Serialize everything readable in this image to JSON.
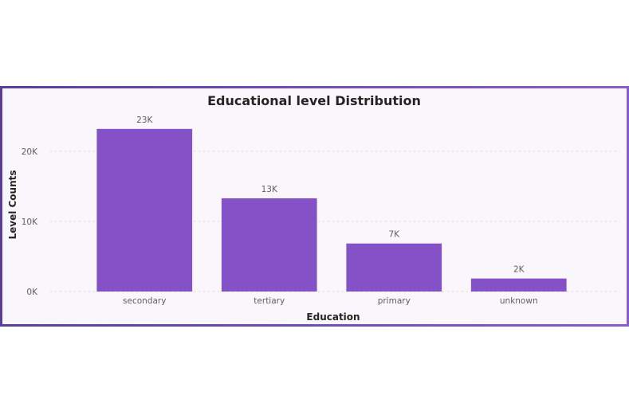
{
  "chart_data": {
    "type": "bar",
    "title": "Educational level Distribution",
    "xlabel": "Education",
    "ylabel": "Level Counts",
    "categories": [
      "secondary",
      "tertiary",
      "primary",
      "unknown"
    ],
    "values": [
      23202,
      13301,
      6851,
      1857
    ],
    "data_labels": [
      "23K",
      "13K",
      "7K",
      "2K"
    ],
    "ylim": [
      0,
      25000
    ],
    "yticks": [
      0,
      10000,
      20000
    ],
    "ytick_labels": [
      "0K",
      "10K",
      "20K"
    ],
    "grid": true,
    "legend": "none",
    "colors": {
      "bar": "#8551c6",
      "frame_start": "#5a3e9b",
      "frame_end": "#8a5cc8"
    }
  }
}
